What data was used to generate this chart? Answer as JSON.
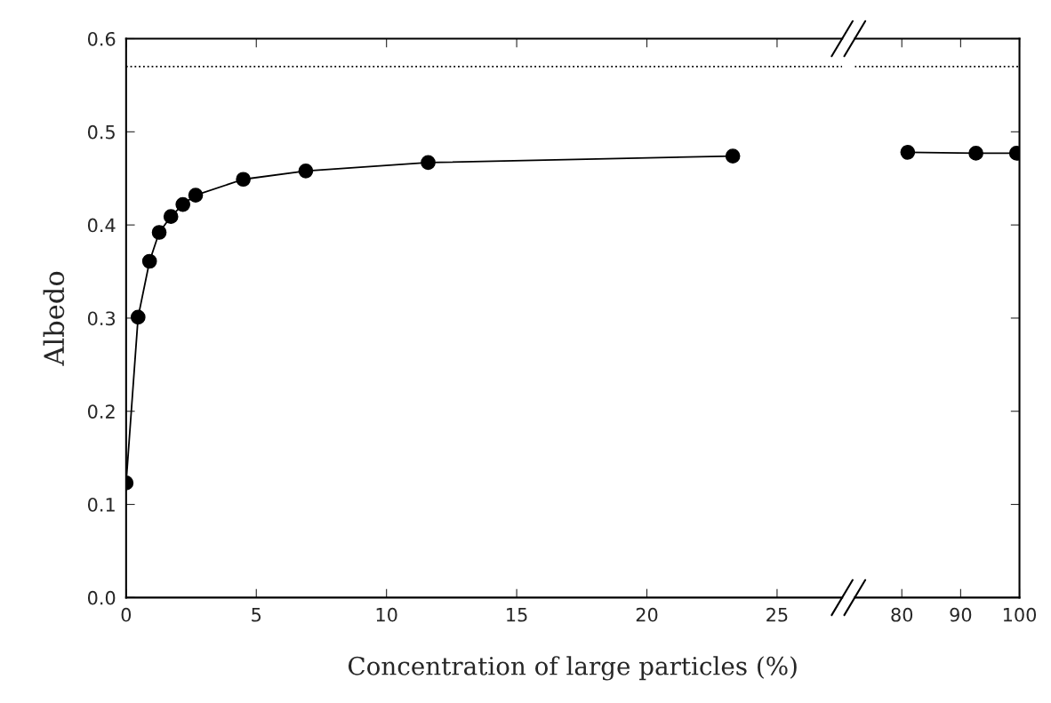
{
  "chart_data": [
    {
      "type": "line",
      "xlabel": "Concentration of large particles (%)",
      "ylabel": "Albedo",
      "xlim": [
        0,
        27.5
      ],
      "ylim": [
        0,
        0.6
      ],
      "xticks": [
        0,
        5,
        10,
        15,
        20,
        25
      ],
      "yticks": [
        {
          "value": 0,
          "label": "0.0"
        },
        0.1,
        0.2,
        0.3,
        0.4,
        0.5,
        0.6
      ],
      "marker": "circle",
      "line_style": "solid",
      "grid": false,
      "series": [
        {
          "color": "#000000",
          "x": [
            0,
            0.46,
            0.9,
            1.27,
            1.72,
            2.18,
            2.67,
            4.5,
            6.9,
            11.6,
            23.3
          ],
          "values": [
            0.123,
            0.301,
            0.361,
            0.392,
            0.409,
            0.422,
            0.432,
            0.449,
            0.458,
            0.467,
            0.474
          ]
        }
      ],
      "ref_lines": [
        {
          "axis": "y",
          "value": 0.57,
          "color": "#000000",
          "line_style": "dotted"
        }
      ]
    },
    {
      "type": "line",
      "xlim": [
        72,
        100
      ],
      "ylim": [
        0,
        0.6
      ],
      "xticks": [
        80,
        90,
        100
      ],
      "yticks": [
        {
          "value": 0,
          "label": null
        },
        0.1,
        0.2,
        0.3,
        0.4,
        0.5,
        0.6
      ],
      "tick_labels": "x",
      "marker": "circle",
      "line_style": "solid",
      "grid": false,
      "series": [
        {
          "color": "#000000",
          "x": [
            81,
            92.6,
            99.5
          ],
          "values": [
            0.478,
            0.477,
            0.477
          ]
        }
      ],
      "ref_lines": [
        {
          "axis": "y",
          "value": 0.57,
          "color": "#000000",
          "line_style": "dotted"
        }
      ]
    }
  ]
}
